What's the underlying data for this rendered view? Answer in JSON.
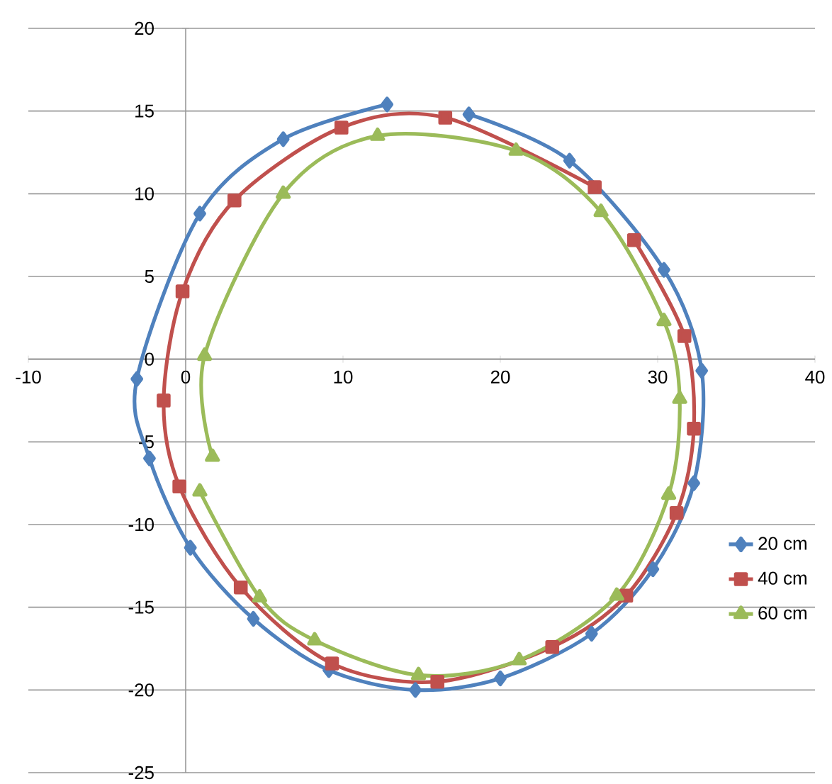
{
  "chart_data": {
    "type": "line",
    "xlim": [
      -10,
      40
    ],
    "ylim": [
      -25,
      20
    ],
    "xticks": [
      -10,
      0,
      10,
      20,
      30,
      40
    ],
    "yticks": [
      -25,
      -20,
      -15,
      -10,
      -5,
      0,
      5,
      10,
      15,
      20
    ],
    "grid": "y",
    "legend": "right",
    "series": [
      {
        "name": "20 cm",
        "color": "#4f81bd",
        "marker": "diamond",
        "x": [
          12.8,
          6.2,
          0.9,
          -3.1,
          -2.3,
          0.3,
          4.3,
          9.1,
          14.6,
          20.0,
          25.8,
          29.7,
          32.3,
          32.8,
          30.4,
          24.4,
          18.0
        ],
        "values": [
          15.4,
          13.3,
          8.8,
          -1.2,
          -6.0,
          -11.4,
          -15.7,
          -18.8,
          -20.0,
          -19.3,
          -16.6,
          -12.7,
          -7.5,
          -0.7,
          5.4,
          12.0,
          14.8
        ]
      },
      {
        "name": "40 cm",
        "color": "#c0504d",
        "marker": "square",
        "x": [
          26.0,
          16.5,
          9.9,
          3.1,
          -0.2,
          -1.4,
          -0.4,
          3.5,
          9.3,
          16.0,
          23.3,
          28.0,
          31.2,
          32.3,
          31.7,
          28.5
        ],
        "values": [
          10.4,
          14.6,
          14.0,
          9.6,
          4.1,
          -2.5,
          -7.7,
          -13.8,
          -18.4,
          -19.5,
          -17.4,
          -14.3,
          -9.3,
          -4.2,
          1.4,
          7.2
        ]
      },
      {
        "name": "60 cm",
        "color": "#9bbb59",
        "marker": "triangle",
        "x": [
          1.7,
          1.2,
          6.2,
          12.2,
          21.0,
          26.4,
          30.4,
          31.4,
          30.7,
          27.4,
          21.2,
          14.8,
          8.2,
          4.7,
          0.9
        ],
        "values": [
          -5.9,
          0.2,
          10.0,
          13.5,
          12.6,
          8.9,
          2.3,
          -2.4,
          -8.2,
          -14.3,
          -18.2,
          -19.1,
          -17.0,
          -14.4,
          -8.0
        ]
      }
    ]
  }
}
